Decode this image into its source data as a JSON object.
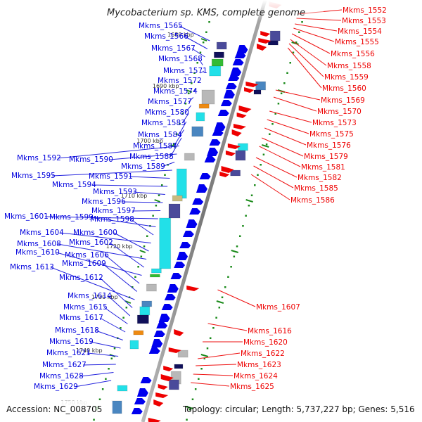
{
  "title": "Mycobacterium sp. KMS, complete genome",
  "footer": {
    "accession": "Accession: NC_008705",
    "summary": "Topology: circular; Length: 5,737,227 bp; Genes: 5,516"
  },
  "colors": {
    "forward_gene": "#0000ee",
    "reverse_gene": "#ee0000",
    "forward_label": "#0000dd",
    "reverse_label": "#ee0000",
    "backbone": "#888888",
    "tick": "#1a8a1a",
    "cog_cyan": "#22e0e8",
    "cog_slate": "#4a4a9a",
    "cog_grey": "#b8b8b8",
    "cog_orange": "#ee8a11",
    "cog_green": "#33bb33",
    "cog_steel": "#4a86c0",
    "cog_navy": "#10105a",
    "cog_khaki": "#c8bb80"
  },
  "scale_ticks": [
    {
      "label": "1680 kbp",
      "kbp": 1680
    },
    {
      "label": "1690 kbp",
      "kbp": 1690
    },
    {
      "label": "1700 kbp",
      "kbp": 1700
    },
    {
      "label": "1710 kbp",
      "kbp": 1710
    },
    {
      "label": "1720 kbp",
      "kbp": 1720
    },
    {
      "label": "1730 kbp",
      "kbp": 1730
    },
    {
      "label": "1740 kbp",
      "kbp": 1740
    },
    {
      "label": "1750 kbp",
      "kbp": 1750
    }
  ],
  "forward_labels": [
    "Mkms_1565",
    "Mkms_1566",
    "Mkms_1567",
    "Mkms_1568",
    "Mkms_1571",
    "Mkms_1572",
    "Mkms_1574",
    "Mkms_1577",
    "Mkms_1580",
    "Mkms_1583",
    "Mkms_1584",
    "Mkms_1587",
    "Mkms_1588",
    "Mkms_1592",
    "Mkms_1590",
    "Mkms_1589",
    "Mkms_1595",
    "Mkms_1591",
    "Mkms_1594",
    "Mkms_1593",
    "Mkms_1596",
    "Mkms_1597",
    "Mkms_1601",
    "Mkms_1599",
    "Mkms_1598",
    "Mkms_1604",
    "Mkms_1600",
    "Mkms_1608",
    "Mkms_1602",
    "Mkms_1610",
    "Mkms_1606",
    "Mkms_1609",
    "Mkms_1613",
    "Mkms_1612",
    "Mkms_1614",
    "Mkms_1615",
    "Mkms_1617",
    "Mkms_1618",
    "Mkms_1619",
    "Mkms_1621",
    "Mkms_1627",
    "Mkms_1628",
    "Mkms_1629"
  ],
  "reverse_labels": [
    "Mkms_1552",
    "Mkms_1553",
    "Mkms_1554",
    "Mkms_1555",
    "Mkms_1556",
    "Mkms_1558",
    "Mkms_1559",
    "Mkms_1560",
    "Mkms_1569",
    "Mkms_1570",
    "Mkms_1573",
    "Mkms_1575",
    "Mkms_1576",
    "Mkms_1579",
    "Mkms_1581",
    "Mkms_1582",
    "Mkms_1585",
    "Mkms_1586",
    "Mkms_1607",
    "Mkms_1616",
    "Mkms_1620",
    "Mkms_1622",
    "Mkms_1623",
    "Mkms_1624",
    "Mkms_1625"
  ]
}
